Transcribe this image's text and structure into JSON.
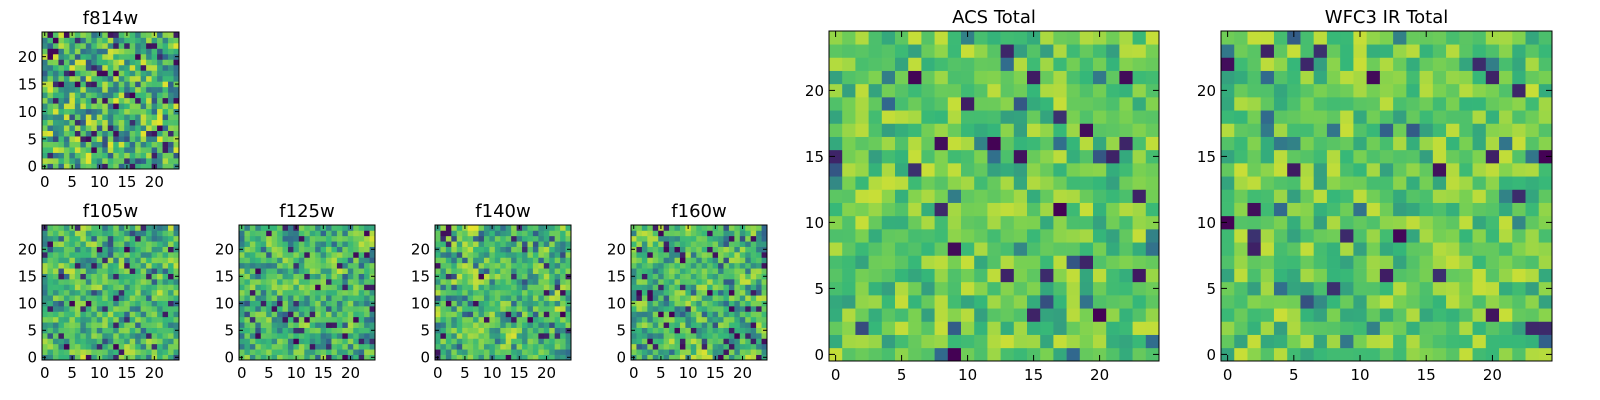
{
  "colormap": {
    "name": "viridis",
    "stops": [
      "#440154",
      "#31688e",
      "#35b779",
      "#7ad151",
      "#fde725"
    ]
  },
  "chart_data": [
    {
      "type": "heatmap",
      "id": "f814w",
      "title": "f814w",
      "grid": [
        25,
        25
      ],
      "xlim": [
        -0.5,
        24.5
      ],
      "ylim": [
        -0.5,
        24.5
      ],
      "xticks": [
        0,
        5,
        10,
        15,
        20
      ],
      "yticks": [
        0,
        5,
        10,
        15,
        20
      ],
      "seed": 11,
      "smooth": 0,
      "bias": 0.62,
      "noise": 0.34,
      "dark_fraction": 0.09
    },
    {
      "type": "heatmap",
      "id": "f105w",
      "title": "f105w",
      "grid": [
        25,
        25
      ],
      "xlim": [
        -0.5,
        24.5
      ],
      "ylim": [
        -0.5,
        24.5
      ],
      "xticks": [
        0,
        5,
        10,
        15,
        20
      ],
      "yticks": [
        0,
        5,
        10,
        15,
        20
      ],
      "seed": 23,
      "smooth": 1,
      "bias": 0.6,
      "noise": 0.42,
      "dark_fraction": 0.06
    },
    {
      "type": "heatmap",
      "id": "f125w",
      "title": "f125w",
      "grid": [
        25,
        25
      ],
      "xlim": [
        -0.5,
        24.5
      ],
      "ylim": [
        -0.5,
        24.5
      ],
      "xticks": [
        0,
        5,
        10,
        15,
        20
      ],
      "yticks": [
        0,
        5,
        10,
        15,
        20
      ],
      "seed": 37,
      "smooth": 1,
      "bias": 0.57,
      "noise": 0.42,
      "dark_fraction": 0.07
    },
    {
      "type": "heatmap",
      "id": "f140w",
      "title": "f140w",
      "grid": [
        25,
        25
      ],
      "xlim": [
        -0.5,
        24.5
      ],
      "ylim": [
        -0.5,
        24.5
      ],
      "xticks": [
        0,
        5,
        10,
        15,
        20
      ],
      "yticks": [
        0,
        5,
        10,
        15,
        20
      ],
      "seed": 41,
      "smooth": 1,
      "bias": 0.6,
      "noise": 0.44,
      "dark_fraction": 0.07
    },
    {
      "type": "heatmap",
      "id": "f160w",
      "title": "f160w",
      "grid": [
        25,
        25
      ],
      "xlim": [
        -0.5,
        24.5
      ],
      "ylim": [
        -0.5,
        24.5
      ],
      "xticks": [
        0,
        5,
        10,
        15,
        20
      ],
      "yticks": [
        0,
        5,
        10,
        15,
        20
      ],
      "seed": 53,
      "smooth": 1,
      "bias": 0.6,
      "noise": 0.44,
      "dark_fraction": 0.07
    },
    {
      "type": "heatmap",
      "id": "acs_total",
      "title": "ACS Total",
      "grid": [
        25,
        25
      ],
      "xlim": [
        -0.5,
        24.5
      ],
      "ylim": [
        -0.5,
        24.5
      ],
      "xticks": [
        0,
        5,
        10,
        15,
        20
      ],
      "yticks": [
        0,
        5,
        10,
        15,
        20
      ],
      "seed": 67,
      "smooth": 0,
      "bias": 0.66,
      "noise": 0.24,
      "dark_fraction": 0.035
    },
    {
      "type": "heatmap",
      "id": "wfc3_ir_total",
      "title": "WFC3 IR Total",
      "grid": [
        25,
        25
      ],
      "xlim": [
        -0.5,
        24.5
      ],
      "ylim": [
        -0.5,
        24.5
      ],
      "xticks": [
        0,
        5,
        10,
        15,
        20
      ],
      "yticks": [
        0,
        5,
        10,
        15,
        20
      ],
      "seed": 79,
      "smooth": 0,
      "bias": 0.66,
      "noise": 0.24,
      "dark_fraction": 0.035
    }
  ]
}
